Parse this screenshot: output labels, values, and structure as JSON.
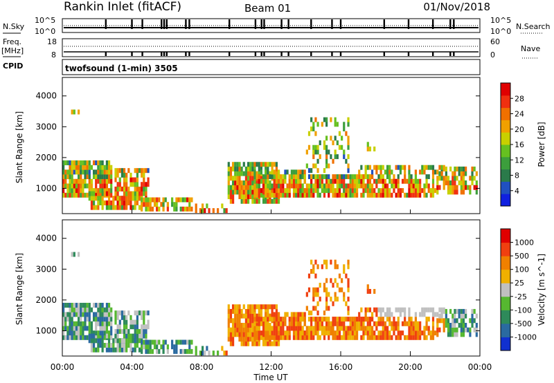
{
  "header": {
    "title": "Rankin Inlet (fitACF)",
    "beam": "Beam 01",
    "date": "01/Nov/2018"
  },
  "status_panels": {
    "nsky_label": "N.Sky",
    "nsearch_label": "N.Search",
    "nsky_ticks": [
      "10^5",
      "10^0"
    ],
    "nsky_right_ticks": [
      "10^5",
      "10^0"
    ],
    "freq_label_1": "Freq.",
    "freq_label_2": "[MHz]",
    "freq_ticks": [
      "18",
      "8"
    ],
    "nave_label": "Nave",
    "nave_ticks": [
      "60",
      "0"
    ],
    "cpid_label": "CPID",
    "cpid_text": "twofsound (1-min) 3505",
    "spike_hours": [
      2.5,
      4.0,
      4.6,
      5.7,
      5.85,
      6.0,
      7.1,
      7.3,
      9.6,
      11.1,
      11.45,
      11.6,
      12.6,
      13.0,
      14.3,
      15.5,
      16.0,
      18.5,
      19.9,
      21.3,
      22.3,
      22.5
    ]
  },
  "x_axis": {
    "label": "Time UT",
    "ticks": [
      "00:00",
      "04:00",
      "08:00",
      "12:00",
      "16:00",
      "20:00",
      "00:00"
    ],
    "range_hours": [
      0,
      24
    ]
  },
  "chart_data": [
    {
      "type": "heatmap",
      "name": "Power",
      "ylabel": "Slant Range [km]",
      "yticks": [
        "4000",
        "3000",
        "2000",
        "1000"
      ],
      "ylim": [
        180,
        4600
      ],
      "colorbar_label": "Power [dB]",
      "colorbar_ticks": [
        "28",
        "24",
        "20",
        "16",
        "12",
        "8",
        "4"
      ],
      "colorbar_range": [
        0,
        32
      ],
      "colorscale": [
        "#1020e0",
        "#2050c0",
        "#2a7a4a",
        "#3c9e3c",
        "#66c020",
        "#c8d000",
        "#f0a000",
        "#f07000",
        "#f03010",
        "#e00000"
      ]
    },
    {
      "type": "heatmap",
      "name": "Velocity",
      "ylabel": "Slant Range [km]",
      "yticks": [
        "4000",
        "3000",
        "2000",
        "1000"
      ],
      "ylim": [
        180,
        4600
      ],
      "colorbar_label": "Velocity [m s^-1]",
      "colorbar_ticks": [
        "1000",
        "500",
        "100",
        "25",
        "-25",
        "-100",
        "-500",
        "-1000"
      ],
      "colorscale": [
        "#1030d0",
        "#2a6aa0",
        "#2e8a5a",
        "#56b830",
        "#c0c0c0",
        "#f0b000",
        "#f08000",
        "#f04010",
        "#e00000"
      ]
    }
  ]
}
